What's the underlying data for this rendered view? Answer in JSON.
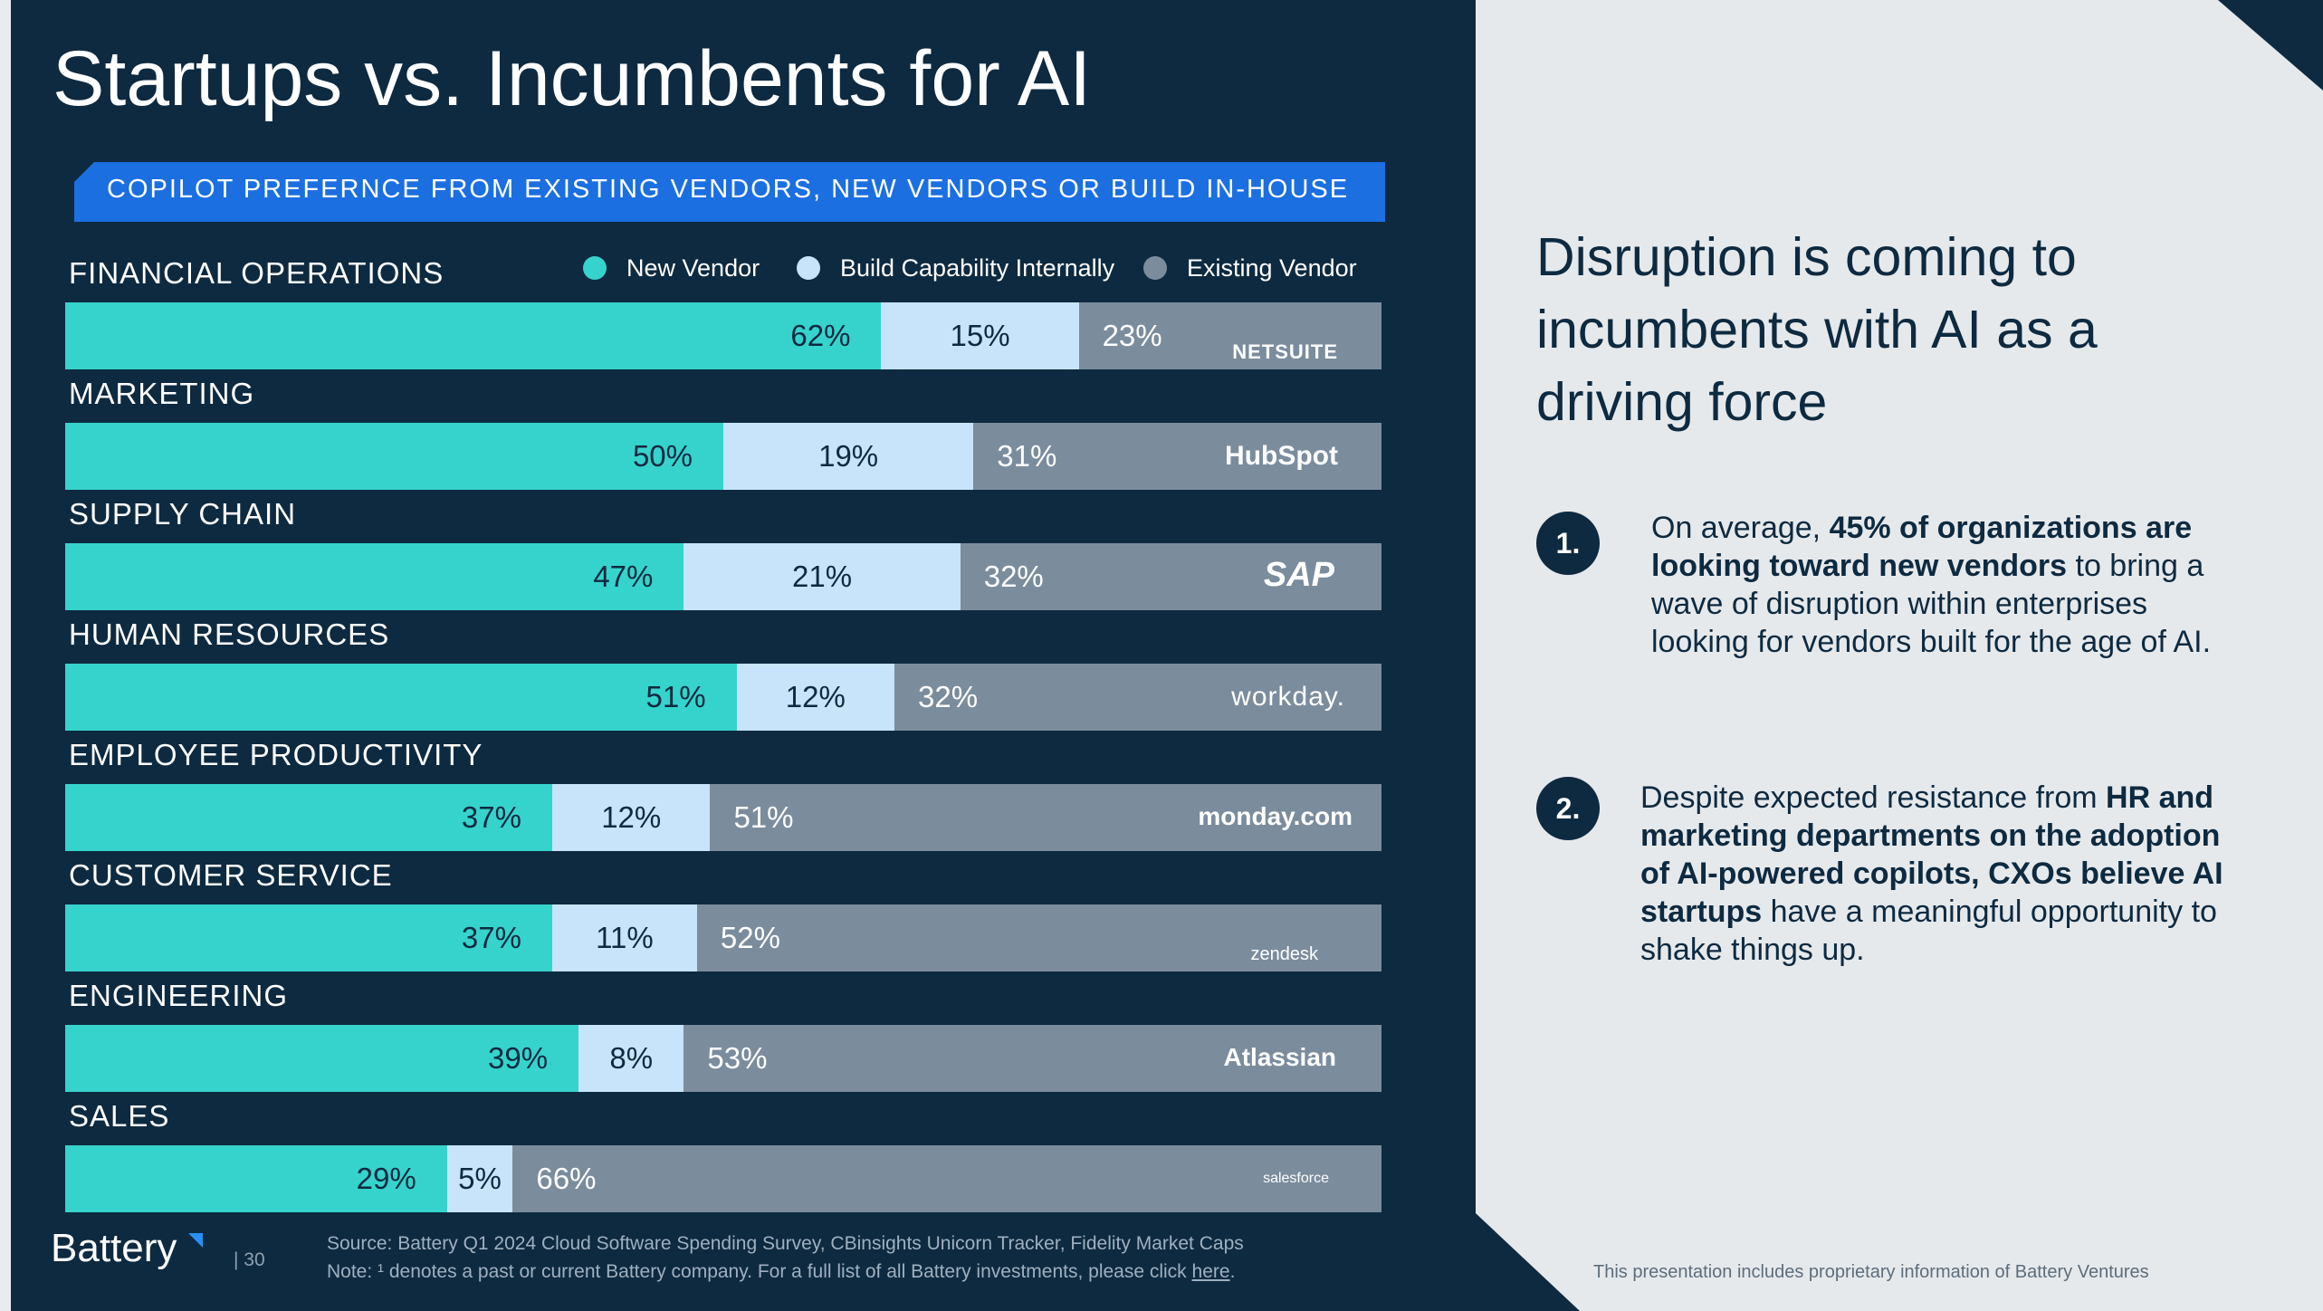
{
  "title": "Startups vs. Incumbents for AI",
  "banner": "COPILOT PREFERNCE FROM EXISTING VENDORS, NEW VENDORS OR BUILD IN-HOUSE",
  "legend": {
    "new_vendor": "New Vendor",
    "build_internal": "Build Capability Internally",
    "existing_vendor": "Existing Vendor"
  },
  "colors": {
    "new_vendor": "#36d3cc",
    "build_internal": "#c7e4fb",
    "existing_vendor": "#7b8c9d",
    "background": "#0e2a40",
    "banner": "#1b6fe0"
  },
  "chart_data": {
    "type": "bar",
    "stacked": true,
    "orientation": "horizontal",
    "categories": [
      "FINANCIAL OPERATIONS",
      "MARKETING",
      "SUPPLY CHAIN",
      "HUMAN RESOURCES",
      "EMPLOYEE PRODUCTIVITY",
      "CUSTOMER SERVICE",
      "ENGINEERING",
      "SALES"
    ],
    "series": [
      {
        "name": "New Vendor",
        "values": [
          62,
          50,
          47,
          51,
          37,
          37,
          39,
          29
        ],
        "labels": [
          "62%",
          "50%",
          "47%",
          "51%",
          "37%",
          "37%",
          "39%",
          "29%"
        ]
      },
      {
        "name": "Build Capability Internally",
        "values": [
          15,
          19,
          21,
          12,
          12,
          11,
          8,
          5
        ],
        "labels": [
          "15%",
          "19%",
          "21%",
          "12%",
          "12%",
          "11%",
          "8%",
          "5%"
        ]
      },
      {
        "name": "Existing Vendor",
        "values": [
          23,
          31,
          32,
          32,
          51,
          52,
          53,
          66
        ],
        "labels": [
          "23%",
          "31%",
          "32%",
          "32%",
          "51%",
          "52%",
          "53%",
          "66%"
        ]
      }
    ],
    "logos": [
      "NETSUITE",
      "HubSpot",
      "SAP",
      "workday.",
      "monday.com",
      "zendesk",
      "Atlassian",
      "salesforce"
    ],
    "legend_position": "top-right"
  },
  "right_panel": {
    "headline": "Disruption is coming to incumbents with AI as a driving force",
    "points": [
      {
        "number": "1.",
        "parts": [
          {
            "text": "On average, ",
            "bold": false
          },
          {
            "text": "45% of organizations are looking toward new vendors",
            "bold": true
          },
          {
            "text": " to bring a wave of disruption within enterprises looking for vendors built for the age of AI.",
            "bold": false
          }
        ]
      },
      {
        "number": "2.",
        "parts": [
          {
            "text": "Despite expected resistance from ",
            "bold": false
          },
          {
            "text": "HR and marketing departments on the adoption of AI-powered copilots, CXOs believe AI startups",
            "bold": true
          },
          {
            "text": " have a meaningful opportunity to shake things up.",
            "bold": false
          }
        ]
      }
    ]
  },
  "footer": {
    "brand": "Battery",
    "page": "| 30",
    "source": "Source: Battery Q1 2024 Cloud Software Spending Survey, CBinsights Unicorn Tracker, Fidelity Market Caps",
    "note_prefix": "Note: ¹ denotes a past or current Battery company. For a full list of all Battery investments, please click ",
    "note_link": "here",
    "note_suffix": ".",
    "disclaimer": "This presentation includes proprietary information of Battery Ventures"
  }
}
